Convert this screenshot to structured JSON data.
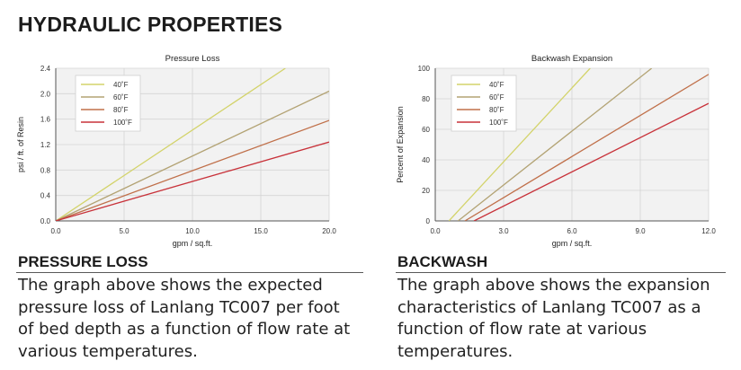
{
  "page": {
    "title": "HYDRAULIC PROPERTIES"
  },
  "chart_data": [
    {
      "type": "line",
      "title": "Pressure Loss",
      "xlabel": "gpm / sq.ft.",
      "ylabel": "psi / ft. of Resin",
      "xlim": [
        0,
        20
      ],
      "ylim": [
        0,
        2.4
      ],
      "xticks": [
        "0.0",
        "5.0",
        "10.0",
        "15.0",
        "20.0"
      ],
      "yticks": [
        "0.0",
        "0.4",
        "0.8",
        "1.2",
        "1.6",
        "2.0",
        "2.4"
      ],
      "grid": true,
      "legend_position": "top-left",
      "series": [
        {
          "name": "40˚F",
          "color": "#d3d36a",
          "x": [
            0,
            16.8
          ],
          "y": [
            0,
            2.4
          ]
        },
        {
          "name": "60˚F",
          "color": "#b3a374",
          "x": [
            0,
            20
          ],
          "y": [
            0,
            2.04
          ]
        },
        {
          "name": "80˚F",
          "color": "#c0704a",
          "x": [
            0,
            20
          ],
          "y": [
            0,
            1.58
          ]
        },
        {
          "name": "100˚F",
          "color": "#c8323a",
          "x": [
            0,
            20
          ],
          "y": [
            0,
            1.24
          ]
        }
      ]
    },
    {
      "type": "line",
      "title": "Backwash Expansion",
      "xlabel": "gpm / sq.ft.",
      "ylabel": "Percent of Expansion",
      "xlim": [
        0,
        12
      ],
      "ylim": [
        0,
        100
      ],
      "xticks": [
        "0.0",
        "3.0",
        "6.0",
        "9.0",
        "12.0"
      ],
      "yticks": [
        "0",
        "20",
        "40",
        "60",
        "80",
        "100"
      ],
      "grid": true,
      "legend_position": "top-left",
      "series": [
        {
          "name": "40˚F",
          "color": "#d3d36a",
          "x": [
            0.6,
            6.8
          ],
          "y": [
            0,
            100
          ]
        },
        {
          "name": "60˚F",
          "color": "#b3a374",
          "x": [
            1.0,
            9.5
          ],
          "y": [
            0,
            100
          ]
        },
        {
          "name": "80˚F",
          "color": "#c0704a",
          "x": [
            1.3,
            12.0
          ],
          "y": [
            0,
            96
          ]
        },
        {
          "name": "100˚F",
          "color": "#c8323a",
          "x": [
            1.7,
            12.0
          ],
          "y": [
            0,
            77
          ]
        }
      ]
    }
  ],
  "sections": {
    "left": {
      "heading": "PRESSURE LOSS",
      "body": "The graph above shows the expected pressure loss of Lanlang TC007 per foot of bed depth as a function of flow rate at various temperatures."
    },
    "right": {
      "heading": "BACKWASH",
      "body": "The graph above shows the expansion characteristics of Lanlang TC007 as a function of flow rate at various temperatures."
    }
  }
}
